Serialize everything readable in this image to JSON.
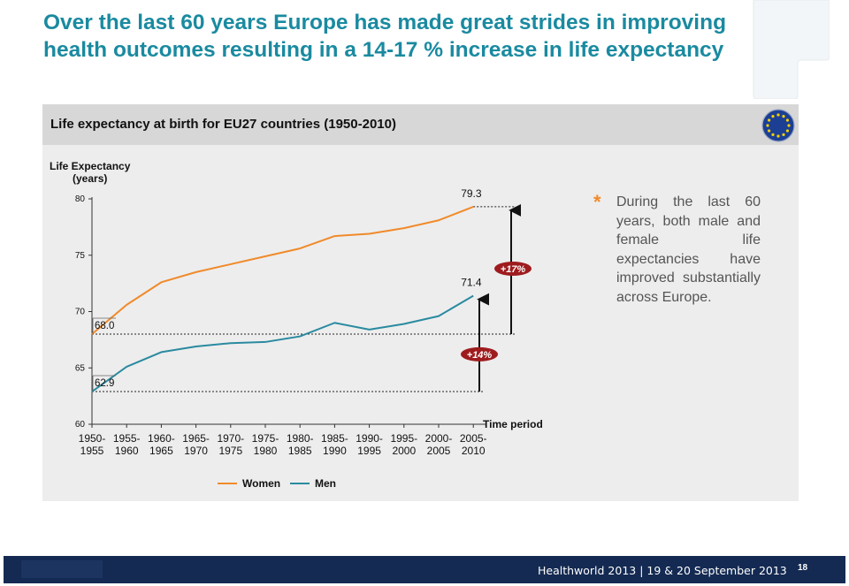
{
  "slide": {
    "title": "Over the last 60 years Europe has made great strides in improving health outcomes resulting in a 14-17 % increase in life expectancy"
  },
  "chart_data": {
    "type": "line",
    "title": "Life expectancy at birth for EU27 countries (1950-2010)",
    "ylabel": "Life Expectancy (years)",
    "xlabel": "Time period",
    "ylim": [
      60,
      80
    ],
    "yticks": [
      60,
      65,
      70,
      75,
      80
    ],
    "categories": [
      "1950- 1955",
      "1955- 1960",
      "1960- 1965",
      "1965- 1970",
      "1970- 1975",
      "1975- 1980",
      "1980- 1985",
      "1985- 1990",
      "1990- 1995",
      "1995- 2000",
      "2000- 2005",
      "2005- 2010"
    ],
    "series": [
      {
        "name": "Women",
        "color": "#f08a2a",
        "values": [
          68.0,
          70.6,
          72.6,
          73.5,
          74.2,
          74.9,
          75.6,
          76.7,
          76.9,
          77.4,
          78.1,
          79.3
        ]
      },
      {
        "name": "Men",
        "color": "#2a8aa0",
        "values": [
          62.9,
          65.1,
          66.4,
          66.9,
          67.2,
          67.3,
          67.8,
          69.0,
          68.4,
          68.9,
          69.6,
          71.4
        ]
      }
    ],
    "data_labels": [
      {
        "text": "68.0",
        "series": "Women",
        "index": 0
      },
      {
        "text": "79.3",
        "series": "Women",
        "index": 11
      },
      {
        "text": "62.9",
        "series": "Men",
        "index": 0
      },
      {
        "text": "71.4",
        "series": "Men",
        "index": 11
      }
    ],
    "annotations": [
      {
        "text": "+17%",
        "from": 68.0,
        "to": 79.3
      },
      {
        "text": "+14%",
        "from": 62.9,
        "to": 71.4
      }
    ],
    "legend_position": "bottom-left",
    "grid": false
  },
  "bullet": {
    "symbol": "*",
    "text": "During the last 60 years, both male and female life expectancies have improved substantially across Europe."
  },
  "footer": {
    "text": "Healthworld 2013 | 19 & 20 September 2013",
    "page_number": "18"
  },
  "colors": {
    "title": "#1a8aa0",
    "women": "#f08a2a",
    "men": "#2a8aa0",
    "badge": "#9e1b1e",
    "footer": "#142a52"
  }
}
